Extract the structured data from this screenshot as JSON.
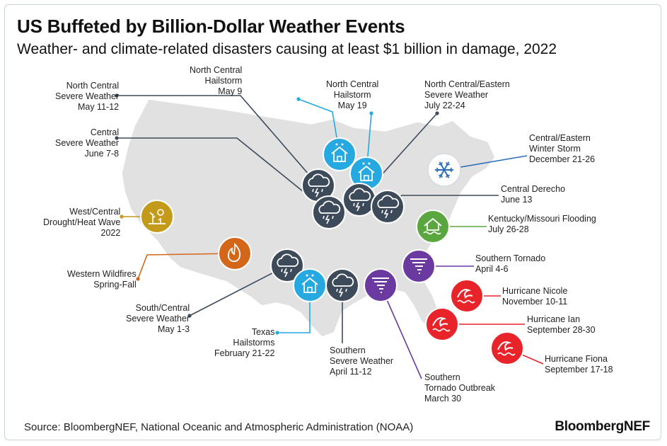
{
  "title": "US Buffeted by Billion-Dollar Weather Events",
  "subtitle": "Weather- and climate-related disasters causing at least $1 billion in damage, 2022",
  "source": "Source: BloombergNEF, National Oceanic and Atmospheric Administration (NOAA)",
  "brand": "BloombergNEF",
  "colors": {
    "severe": "#3c4a59",
    "hail": "#25a9e0",
    "winter": "#ffffff",
    "flood": "#5aa63f",
    "tornado": "#6a3aa0",
    "hurricane": "#e8242a",
    "wildfire": "#d4661a",
    "drought": "#c49a1a",
    "map": "#e1e1e1"
  },
  "events": [
    {
      "id": "nc-severe-may",
      "type": "severe",
      "icon": "thunderstorm-icon",
      "lines": [
        "North Central",
        "Severe Weather",
        "May 11-12"
      ]
    },
    {
      "id": "c-severe-june",
      "type": "severe",
      "icon": "thunderstorm-icon",
      "lines": [
        "Central",
        "Severe Weather",
        "June 7-8"
      ]
    },
    {
      "id": "nc-hail-may9",
      "type": "hail",
      "icon": "hail-house-icon",
      "lines": [
        "North Central",
        "Hailstorm",
        "May 9"
      ]
    },
    {
      "id": "nc-hail-may19",
      "type": "hail",
      "icon": "hail-house-icon",
      "lines": [
        "North Central",
        "Hailstorm",
        "May 19"
      ]
    },
    {
      "id": "nce-severe-july",
      "type": "severe",
      "icon": "thunderstorm-icon",
      "lines": [
        "North Central/Eastern",
        "Severe Weather",
        "July 22-24"
      ]
    },
    {
      "id": "winter-storm",
      "type": "winter",
      "icon": "snowflake-icon",
      "lines": [
        "Central/Eastern",
        "Winter Storm",
        "December 21-26"
      ]
    },
    {
      "id": "derecho",
      "type": "severe",
      "icon": "thunderstorm-icon",
      "lines": [
        "Central Derecho",
        "June 13"
      ]
    },
    {
      "id": "drought",
      "type": "drought",
      "icon": "drought-icon",
      "lines": [
        "West/Central",
        "Drought/Heat Wave",
        "2022"
      ]
    },
    {
      "id": "flooding",
      "type": "flood",
      "icon": "flood-house-icon",
      "lines": [
        "Kentucky/Missouri Flooding",
        "July 26-28"
      ]
    },
    {
      "id": "wildfires",
      "type": "wildfire",
      "icon": "flame-icon",
      "lines": [
        "Western Wildfires",
        "Spring-Fall"
      ]
    },
    {
      "id": "s-tornado",
      "type": "tornado",
      "icon": "tornado-icon",
      "lines": [
        "Southern Tornado",
        "April 4-6"
      ]
    },
    {
      "id": "sc-severe",
      "type": "severe",
      "icon": "thunderstorm-icon",
      "lines": [
        "South/Central",
        "Severe Weather",
        "May 1-3"
      ]
    },
    {
      "id": "tx-hail",
      "type": "hail",
      "icon": "hail-house-icon",
      "lines": [
        "Texas",
        "Hailstorms",
        "February 21-22"
      ]
    },
    {
      "id": "s-severe",
      "type": "severe",
      "icon": "thunderstorm-icon",
      "lines": [
        "Southern",
        "Severe Weather",
        "April 11-12"
      ]
    },
    {
      "id": "tornado-outbreak",
      "type": "tornado",
      "icon": "tornado-icon",
      "lines": [
        "Southern",
        "Tornado Outbreak",
        "March 30"
      ]
    },
    {
      "id": "nicole",
      "type": "hurricane",
      "icon": "wave-icon",
      "lines": [
        "Hurricane Nicole",
        "November 10-11"
      ]
    },
    {
      "id": "ian",
      "type": "hurricane",
      "icon": "wave-icon",
      "lines": [
        "Hurricane Ian",
        "September 28-30"
      ]
    },
    {
      "id": "fiona",
      "type": "hurricane",
      "icon": "wave-icon",
      "lines": [
        "Hurricane Fiona",
        "September 17-18"
      ]
    }
  ]
}
